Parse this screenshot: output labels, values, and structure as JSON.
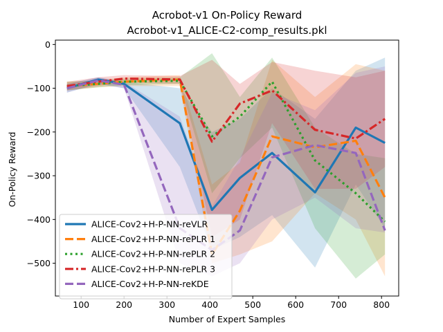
{
  "chart_data": {
    "type": "line",
    "title": "Acrobot-v1 On-Policy Reward",
    "subtitle": "Acrobot-v1_ALICE-C2-comp_results.pkl",
    "xlabel": "Number of Expert Samples",
    "ylabel": "On-Policy Reward",
    "xlim": [
      40,
      840
    ],
    "ylim": [
      -575,
      10
    ],
    "xticks": [
      100,
      200,
      300,
      400,
      500,
      600,
      700,
      800
    ],
    "yticks": [
      0,
      -100,
      -200,
      -300,
      -400,
      -500
    ],
    "legend_position": "lower-left",
    "grid": false,
    "x": [
      67,
      140,
      200,
      330,
      405,
      470,
      545,
      645,
      740,
      808
    ],
    "series": [
      {
        "name": "ALICE-Cov2+H-P-NN-reVLR",
        "color": "#1f77b4",
        "dash": "solid",
        "values": [
          -100,
          -80,
          -90,
          -180,
          -378,
          -305,
          -248,
          -338,
          -190,
          -225
        ],
        "band_upper": [
          -90,
          -75,
          -85,
          -100,
          -200,
          -170,
          -100,
          -170,
          -60,
          -30
        ],
        "band_lower": [
          -110,
          -90,
          -100,
          -280,
          -470,
          -440,
          -390,
          -510,
          -320,
          -420
        ]
      },
      {
        "name": "ALICE-Cov2+H-P-NN-rePLR 1",
        "color": "#ff7f0e",
        "dash": "dashed",
        "values": [
          -95,
          -90,
          -85,
          -80,
          -480,
          -380,
          -210,
          -235,
          -220,
          -350
        ],
        "band_upper": [
          -85,
          -82,
          -75,
          -70,
          -320,
          -270,
          -35,
          -120,
          -45,
          -60
        ],
        "band_lower": [
          -105,
          -98,
          -95,
          -95,
          -500,
          -480,
          -450,
          -340,
          -400,
          -530
        ]
      },
      {
        "name": "ALICE-Cov2+H-P-NN-rePLR 2",
        "color": "#2ca02c",
        "dash": "dotted",
        "values": [
          -95,
          -90,
          -85,
          -83,
          -210,
          -165,
          -85,
          -265,
          -340,
          -405
        ],
        "band_upper": [
          -85,
          -82,
          -78,
          -75,
          -20,
          -120,
          -30,
          -190,
          -250,
          -260
        ],
        "band_lower": [
          -105,
          -98,
          -93,
          -90,
          -340,
          -260,
          -190,
          -420,
          -535,
          -480
        ]
      },
      {
        "name": "ALICE-Cov2+H-P-NN-rePLR 3",
        "color": "#d62728",
        "dash": "dashdot",
        "values": [
          -95,
          -85,
          -78,
          -80,
          -222,
          -135,
          -105,
          -195,
          -215,
          -170
        ],
        "band_upper": [
          -85,
          -75,
          -70,
          -72,
          -35,
          -90,
          -40,
          -60,
          -75,
          -60
        ],
        "band_lower": [
          -105,
          -95,
          -87,
          -90,
          -440,
          -400,
          -180,
          -330,
          -330,
          -280
        ]
      },
      {
        "name": "ALICE-Cov2+H-P-NN-reKDE",
        "color": "#9467bd",
        "dash": "dashed",
        "values": [
          -100,
          -82,
          -92,
          -420,
          -470,
          -425,
          -258,
          -230,
          -248,
          -425
        ],
        "band_upper": [
          -90,
          -75,
          -85,
          -165,
          -370,
          -260,
          -110,
          -150,
          -65,
          -50
        ],
        "band_lower": [
          -110,
          -90,
          -100,
          -500,
          -530,
          -500,
          -400,
          -350,
          -420,
          -430
        ]
      }
    ]
  }
}
